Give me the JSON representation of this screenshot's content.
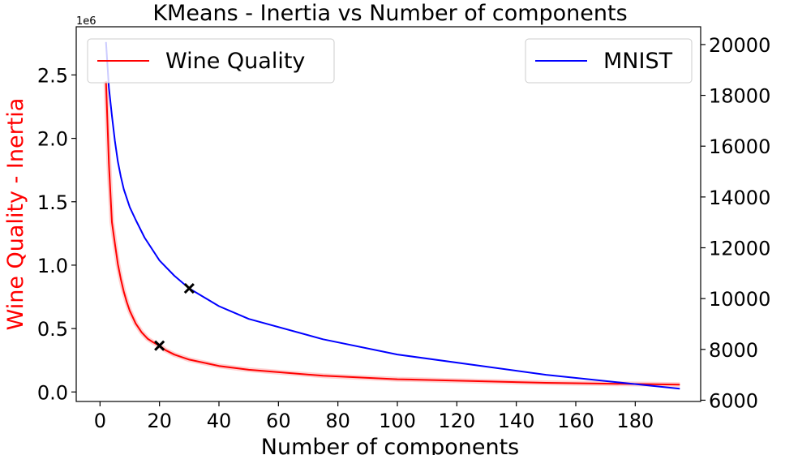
{
  "chart_data": {
    "type": "line",
    "title": "KMeans - Inertia vs Number of components",
    "xlabel": "Number of components",
    "ylabel_left": "Wine Quality - Inertia",
    "ylabel_left_color": "#ff0000",
    "y_left_offset_text": "1e6",
    "xlim": [
      -8,
      202
    ],
    "ylim_left": [
      -75000,
      2880000
    ],
    "ylim_right": [
      5950,
      20700
    ],
    "x_ticks": [
      0,
      20,
      40,
      60,
      80,
      100,
      120,
      140,
      160,
      180
    ],
    "x_tick_labels": [
      "0",
      "20",
      "40",
      "60",
      "80",
      "100",
      "120",
      "140",
      "160",
      "180"
    ],
    "y_left_ticks": [
      0,
      500000,
      1000000,
      1500000,
      2000000,
      2500000
    ],
    "y_left_tick_labels": [
      "0.0",
      "0.5",
      "1.0",
      "1.5",
      "2.0",
      "2.5"
    ],
    "y_right_ticks": [
      6000,
      8000,
      10000,
      12000,
      14000,
      16000,
      18000,
      20000
    ],
    "y_right_tick_labels": [
      "6000",
      "8000",
      "10000",
      "12000",
      "14000",
      "16000",
      "18000",
      "20000"
    ],
    "grid": false,
    "series": [
      {
        "name": "Wine Quality",
        "axis": "left",
        "color": "#ff0000",
        "x": [
          2,
          3,
          4,
          5,
          6,
          7,
          8,
          9,
          10,
          12,
          14,
          16,
          18,
          20,
          22,
          25,
          30,
          40,
          50,
          75,
          100,
          150,
          195
        ],
        "y": [
          2450000,
          1800000,
          1340000,
          1170000,
          1010000,
          890000,
          790000,
          710000,
          640000,
          540000,
          470000,
          420000,
          390000,
          365000,
          330000,
          295000,
          255000,
          205000,
          175000,
          128000,
          100000,
          72000,
          58000
        ]
      },
      {
        "name": "MNIST",
        "axis": "right",
        "color": "#0000ff",
        "x": [
          2,
          3,
          4,
          5,
          6,
          7,
          8,
          10,
          12,
          15,
          20,
          25,
          30,
          40,
          50,
          75,
          100,
          150,
          195
        ],
        "y": [
          20100,
          18300,
          17200,
          16200,
          15400,
          14800,
          14300,
          13600,
          13100,
          12400,
          11500,
          10900,
          10400,
          9700,
          9200,
          8400,
          7800,
          7000,
          6450
        ]
      }
    ],
    "markers": [
      {
        "axis": "left",
        "x": 20,
        "y": 365000,
        "symbol": "x"
      },
      {
        "axis": "right",
        "x": 30,
        "y": 10400,
        "symbol": "x"
      }
    ],
    "legends": [
      {
        "placement": "upper-left",
        "series": "Wine Quality"
      },
      {
        "placement": "upper-right",
        "series": "MNIST"
      }
    ]
  }
}
